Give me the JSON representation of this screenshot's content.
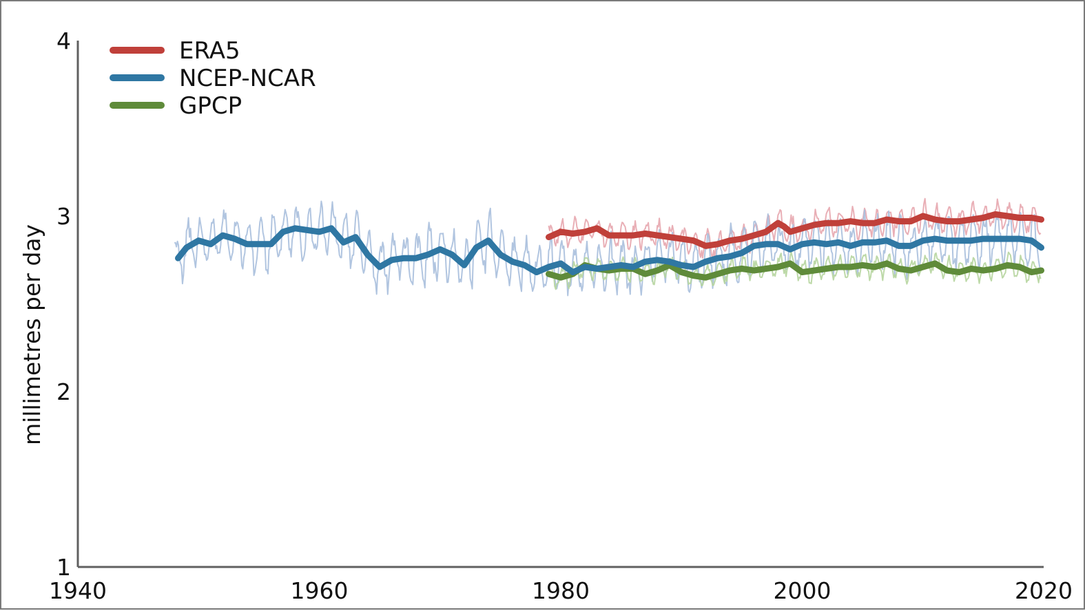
{
  "chart_data": {
    "type": "line",
    "title": "",
    "xlabel": "",
    "ylabel": "millimetres per day",
    "xlim": [
      1940,
      2020
    ],
    "ylim": [
      1,
      4
    ],
    "xticks": [
      1940,
      1960,
      1980,
      2000,
      2020
    ],
    "yticks": [
      1,
      2,
      3,
      4
    ],
    "x_tick_labels": [
      "1940",
      "1960",
      "1980",
      "2000",
      "2020"
    ],
    "y_tick_labels": [
      "1",
      "2",
      "3",
      "4"
    ],
    "grid": false,
    "legend_position": "top-left",
    "series": [
      {
        "name": "ERA5",
        "color": "#c0403a",
        "raw_color": "#e7a6ae",
        "x": [
          1979.0,
          1980,
          1981,
          1982,
          1983,
          1984,
          1985,
          1986,
          1987,
          1988,
          1989,
          1990,
          1991,
          1992,
          1993,
          1994,
          1995,
          1996,
          1997,
          1998,
          1998.5,
          1999,
          2000,
          2001,
          2002,
          2003,
          2004,
          2005,
          2006,
          2007,
          2008,
          2009,
          2010,
          2011,
          2012,
          2013,
          2014,
          2015,
          2016,
          2017,
          2018,
          2019,
          2019.8
        ],
        "values": [
          2.88,
          2.91,
          2.9,
          2.91,
          2.93,
          2.89,
          2.89,
          2.89,
          2.9,
          2.89,
          2.88,
          2.87,
          2.86,
          2.83,
          2.84,
          2.86,
          2.87,
          2.89,
          2.91,
          2.96,
          2.94,
          2.91,
          2.93,
          2.95,
          2.96,
          2.96,
          2.97,
          2.96,
          2.96,
          2.98,
          2.97,
          2.97,
          3.0,
          2.98,
          2.97,
          2.97,
          2.98,
          2.99,
          3.01,
          3.0,
          2.99,
          2.99,
          2.98
        ]
      },
      {
        "name": "NCEP-NCAR",
        "color": "#2f77a3",
        "raw_color": "#a9bfdd",
        "x": [
          1948.3,
          1949,
          1950,
          1951,
          1952,
          1953,
          1954,
          1955,
          1956,
          1957,
          1958,
          1959,
          1960,
          1961,
          1962,
          1963,
          1964,
          1965,
          1966,
          1967,
          1968,
          1969,
          1970,
          1971,
          1972,
          1973,
          1974,
          1975,
          1976,
          1977,
          1978,
          1979,
          1980,
          1981,
          1982,
          1983,
          1984,
          1985,
          1986,
          1987,
          1988,
          1989,
          1990,
          1991,
          1992,
          1993,
          1994,
          1995,
          1996,
          1997,
          1998,
          1999,
          2000,
          2001,
          2002,
          2003,
          2004,
          2005,
          2006,
          2007,
          2008,
          2009,
          2010,
          2011,
          2012,
          2013,
          2014,
          2015,
          2016,
          2017,
          2018,
          2019,
          2019.8
        ],
        "values": [
          2.76,
          2.82,
          2.86,
          2.84,
          2.89,
          2.87,
          2.84,
          2.84,
          2.84,
          2.91,
          2.93,
          2.92,
          2.91,
          2.93,
          2.85,
          2.88,
          2.78,
          2.71,
          2.75,
          2.76,
          2.76,
          2.78,
          2.81,
          2.78,
          2.72,
          2.82,
          2.86,
          2.78,
          2.74,
          2.72,
          2.68,
          2.71,
          2.73,
          2.68,
          2.71,
          2.7,
          2.71,
          2.72,
          2.71,
          2.74,
          2.75,
          2.74,
          2.72,
          2.71,
          2.74,
          2.76,
          2.77,
          2.79,
          2.83,
          2.84,
          2.84,
          2.81,
          2.84,
          2.85,
          2.84,
          2.85,
          2.83,
          2.85,
          2.85,
          2.86,
          2.83,
          2.83,
          2.86,
          2.87,
          2.86,
          2.86,
          2.86,
          2.87,
          2.87,
          2.87,
          2.87,
          2.86,
          2.82
        ]
      },
      {
        "name": "GPCP",
        "color": "#5f8b3a",
        "raw_color": "#b6d59f",
        "x": [
          1979.0,
          1980,
          1981,
          1982,
          1983,
          1984,
          1985,
          1986,
          1987,
          1988,
          1989,
          1990,
          1991,
          1992,
          1993,
          1994,
          1995,
          1996,
          1997,
          1998,
          1999,
          2000,
          2001,
          2002,
          2003,
          2004,
          2005,
          2006,
          2007,
          2008,
          2009,
          2010,
          2011,
          2012,
          2013,
          2014,
          2015,
          2016,
          2017,
          2018,
          2019,
          2019.8
        ],
        "values": [
          2.67,
          2.65,
          2.67,
          2.72,
          2.7,
          2.69,
          2.7,
          2.7,
          2.67,
          2.69,
          2.72,
          2.68,
          2.66,
          2.65,
          2.67,
          2.69,
          2.7,
          2.69,
          2.7,
          2.71,
          2.73,
          2.68,
          2.69,
          2.7,
          2.71,
          2.71,
          2.72,
          2.71,
          2.73,
          2.7,
          2.69,
          2.71,
          2.73,
          2.69,
          2.68,
          2.7,
          2.69,
          2.7,
          2.72,
          2.71,
          2.68,
          2.69
        ]
      }
    ]
  }
}
